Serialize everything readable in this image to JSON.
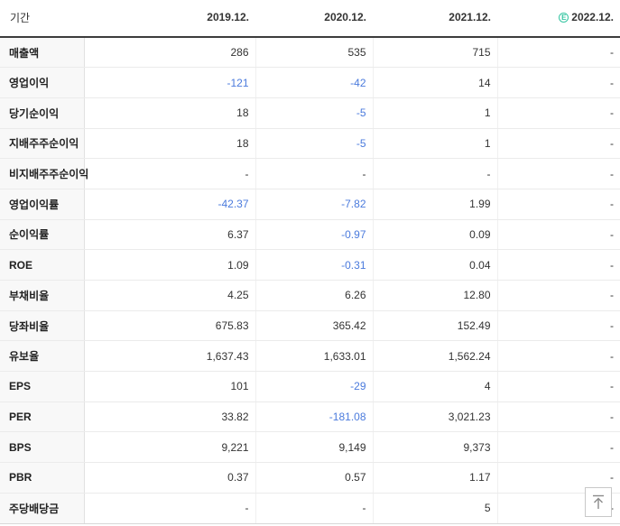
{
  "colors": {
    "negative_value": "#4b7bdd",
    "estimate_badge": "#35c5a2",
    "header_rule": "#3c3c3c"
  },
  "table": {
    "period_label": "기간",
    "columns": [
      "2019.12.",
      "2020.12.",
      "2021.12.",
      "2022.12."
    ],
    "estimate_badge_glyph": "E",
    "estimate_column_index": 3,
    "section_breaks": [
      5,
      8,
      11,
      15
    ],
    "rows": [
      {
        "label": "매출액",
        "values": [
          "286",
          "535",
          "715",
          "-"
        ]
      },
      {
        "label": "영업이익",
        "values": [
          "-121",
          "-42",
          "14",
          "-"
        ]
      },
      {
        "label": "당기순이익",
        "values": [
          "18",
          "-5",
          "1",
          "-"
        ]
      },
      {
        "label": "지배주주순이익",
        "values": [
          "18",
          "-5",
          "1",
          "-"
        ]
      },
      {
        "label": "비지배주주순이익",
        "values": [
          "-",
          "-",
          "-",
          "-"
        ]
      },
      {
        "label": "영업이익률",
        "values": [
          "-42.37",
          "-7.82",
          "1.99",
          "-"
        ]
      },
      {
        "label": "순이익률",
        "values": [
          "6.37",
          "-0.97",
          "0.09",
          "-"
        ]
      },
      {
        "label": "ROE",
        "values": [
          "1.09",
          "-0.31",
          "0.04",
          "-"
        ]
      },
      {
        "label": "부채비율",
        "values": [
          "4.25",
          "6.26",
          "12.80",
          "-"
        ]
      },
      {
        "label": "당좌비율",
        "values": [
          "675.83",
          "365.42",
          "152.49",
          "-"
        ]
      },
      {
        "label": "유보율",
        "values": [
          "1,637.43",
          "1,633.01",
          "1,562.24",
          "-"
        ]
      },
      {
        "label": "EPS",
        "values": [
          "101",
          "-29",
          "4",
          "-"
        ]
      },
      {
        "label": "PER",
        "values": [
          "33.82",
          "-181.08",
          "3,021.23",
          "-"
        ]
      },
      {
        "label": "BPS",
        "values": [
          "9,221",
          "9,149",
          "9,373",
          "-"
        ]
      },
      {
        "label": "PBR",
        "values": [
          "0.37",
          "0.57",
          "1.17",
          "-"
        ]
      },
      {
        "label": "주당배당금",
        "values": [
          "-",
          "-",
          "5",
          "-"
        ]
      }
    ]
  },
  "scroll_top": {
    "tooltip": "맨위로"
  }
}
